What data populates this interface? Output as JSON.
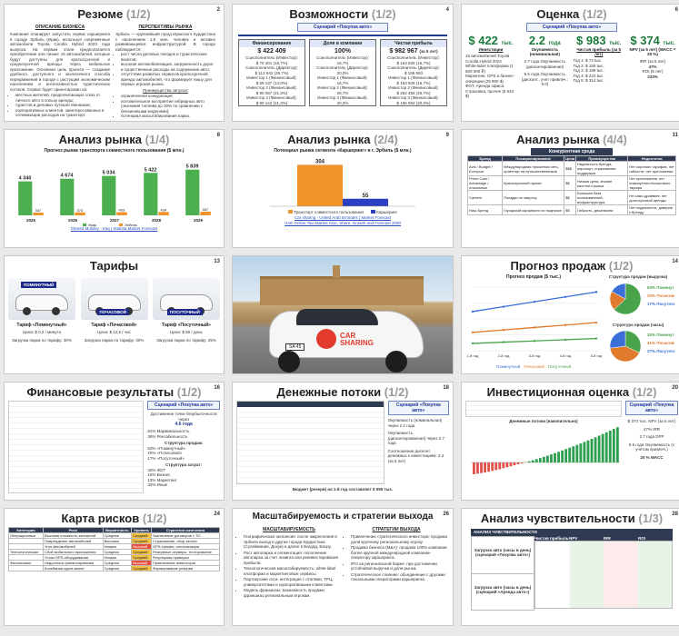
{
  "slides": {
    "s1": {
      "title": "Резюме",
      "sub": "(1/2)",
      "num": "2",
      "col1_title": "ОПИСАНИЕ БИЗНЕСА",
      "col2_title": "ПЕРСПЕКТИВЫ РЫНКА",
      "col1_text": "Компания планирует запустить сервис каршеринга в городе Эрбиль (Ирак), используя современные автомобили Toyota Corolla Hybrid 2023 года выпуска. На первом этапе предполагается приобретение или лизинг 15 автомобилей, которые будут доступны для краткосрочной и среднесрочной аренды через мобильное приложение. Основная цель проекта — создание удобного, доступного и экологичного способа передвижения в городе с растущим экономическим населением и интенсивностью туристических потоков. Сервис будет ориентирован на:",
      "col1_bullets": [
        "местных жителей, предпочитающих отказ от личного авто в пользу аренды;",
        "туристов и деловых путешественников;",
        "корпоративных клиентов, заинтересованных в оптимизации расходов на транспорт."
      ],
      "col2_text": "Эрбиль — крупнейший город Иракского Курдистана с населением 1,5 млн. человек и активно развивающейся инфраструктурой. В городе наблюдается:",
      "col2_bullets": [
        "рост числа деловых поездок и туристических визитов;",
        "высокая автомобилизация, загруженность дорог и существенные расходы на содержание авто;",
        "отсутствие развитых сервисов краткосрочной аренды автомобилей, что формирует нишу для первых игроков рынка."
      ],
      "col2_sub": "Преимущества запуска:",
      "col2_bullets2": [
        "ограниченная конкуренция;",
        "положительное восприятие гибридных авто (экономия топлива до 30% по сравнению с бензиновыми моделями);",
        "потенциал масштабирования парка."
      ]
    },
    "s2": {
      "title": "Возможности",
      "sub": "(1/2)",
      "num": "4",
      "scenario": "Сценарий «Покупка авто»",
      "headers": [
        "Финансирование",
        "Доля в компании",
        "Чистая прибыль"
      ],
      "values": [
        "$ 422 409",
        "100%",
        "$ 982 967"
      ],
      "value_notes": [
        "",
        "",
        "(за 5 лет)"
      ],
      "rows": [
        [
          "Соисполнитель (Инвестор):",
          "Соисполнитель (Инвестор):",
          "Соисполнитель (Инвестор):"
        ],
        [
          "$ 70 401 (16,7%)",
          "16,7%",
          "$ 163 828 (16,7%)"
        ],
        [
          "Соисполнитель (Директор):",
          "Соисполнитель (Директор):",
          "Соисполнитель (Директор):"
        ],
        [
          "$ 112 642 (26,7%)",
          "20,0%",
          "$ 196 593"
        ],
        [
          "Инвестор 1 (Финансовый):",
          "Инвестор 1 (Финансовый):",
          "Инвестор 1 (Финансовый):"
        ],
        [
          "$ 59 137 (14,0%)",
          "16,7%",
          "$ 163 828 (16,7%)"
        ],
        [
          "Инвестор 2 (Финансовый):",
          "Инвестор 2 (Финансовый):",
          "Инвестор 2 (Финансовый):"
        ],
        [
          "$ 90 087 (21,3%)",
          "26,7%",
          "$ 262 458 (26,7%)"
        ],
        [
          "Инвестор 3 (Финансовый):",
          "Инвестор 3 (Финансовый):",
          "Инвестор 3 (Финансовый):"
        ],
        [
          "$ 90 142 (21,3%)",
          "20,0%",
          "$ 196 593 (20,0%)"
        ]
      ]
    },
    "s3": {
      "title": "Оценка",
      "sub": "(1/2)",
      "num": "6",
      "scenario": "Сценарий «Покупка авто»",
      "kpis": [
        {
          "value": "$ 422",
          "unit": "тыс.",
          "label": "Инвестиции"
        },
        {
          "value": "2.2",
          "unit": "года",
          "label": "Окупаемость (номинальная)"
        },
        {
          "value": "$ 983",
          "unit": "тыс.",
          "label": "Чистая прибыль (за 5 лет)"
        },
        {
          "value": "$ 374",
          "unit": "тыс.",
          "label": "NPV (за 5 лет) (WACC = 20 %)"
        }
      ],
      "col1": [
        "15 автомобилей Toyota Corolla Hybrid 2023",
        "White-label платформа (1 500 000 ₽)",
        "Маркетинг, GPS и бизнес-операции (25 900 $)",
        "ФОТ, Аренда офиса, Страховка, прочее (6 634 $)"
      ],
      "col2": [
        "2.7 года Окупаемость (дисконтированная)",
        "5.6 года Окупаемость (дисконт., учет привлеч.: 9.0)"
      ],
      "col3": [
        "Год 1: $ 72 tыс.",
        "Год 2: $ 158 tыс.",
        "Год 3: $ 188 tыс.",
        "Год 4: $ 223 tыс.",
        "Год 5: $ 314 tыс."
      ],
      "col4": [
        "IRR (за 5 лет)",
        "47%",
        "ROI (5 лет)",
        "233%"
      ]
    },
    "s4": {
      "title": "Анализ рынка",
      "sub": "(1/4)",
      "num": "8",
      "chart_title": "Прогноз рынка транспорта совместного пользования ($ млн.)",
      "link": "Shared Mobility - Iraq | Statista Market Forecast"
    },
    "s5": {
      "title": "Анализ рынка",
      "sub": "(2/4)",
      "num": "9",
      "chart_title": "Потенциал рынка сегмента «Каршеринг» в г. Эрбиль ($ млн.)",
      "legend": [
        "Транспорт совместного пользования",
        "Каршеринг"
      ],
      "links": [
        "Car sharing - United Arab Emirates | Market Forecast",
        "UAE Online Taxi Market Size, Share, Growth and Forecast 2030"
      ]
    },
    "s6": {
      "title": "Анализ рынка",
      "sub": "(4/4)",
      "num": "11",
      "table_title": "Конкурентная среда",
      "headers": [
        "Бренд",
        "Позиционирование",
        "Цена",
        "Преимущества",
        "Недостатки"
      ],
      "rows": [
        [
          "Avis / Budget / Europcar",
          "Международная прокатная сеть, ориентир на путешественников",
          "$$$",
          "Надежность бренда, аэропорт, страхование, поддержка",
          "Нет коротких тарифов, нет гибкости, нет приложения"
        ],
        [
          "Prime Cars / Advantage / локальные",
          "Краткосрочный прокат",
          "$$",
          "Низкая цена, знание местного рынка",
          "Нет приложения, нет поминутного/почасового тарифа"
        ],
        [
          "Careem",
          "Поездки по запросу",
          "$$",
          "Большая база пользователей, инфраструктура",
          "Не само-драйвинг, нет долгосрочной аренды"
        ],
        [
          "Ниш Бренд",
          "Городской каршеринг по подписке",
          "$$",
          "Гибкость, дешевизна",
          "Нет надежности, доверия к бренду"
        ]
      ]
    },
    "s7": {
      "title": "Тарифы",
      "sub": "",
      "num": "13",
      "cars": [
        {
          "badge": "ПОМИНУТНЫЙ",
          "name": "Тариф «Поминутный»",
          "price": "Цена: $ 0,2 / минута",
          "note": "Загрузка парка по тарифу: 30%"
        },
        {
          "badge": "ПОЧАСОВОЙ",
          "name": "Тариф «Почасовой»",
          "price": "Цена: $ 12,5 / час",
          "note": "Загрузка парка по тарифу: 30%"
        },
        {
          "badge": "ПОСУТОЧНЫЙ",
          "name": "Тариф «Посуточный»",
          "price": "Цена: $ 50 / день",
          "note": "Загрузка парка по тарифу: 25%"
        }
      ]
    },
    "s8": {
      "brand": "CAR SHARING",
      "plate": "SA 45"
    },
    "s9": {
      "title": "Прогноз продаж",
      "sub": "(1/2)",
      "num": "14",
      "chart_title": "Прогноз продаж ($ тыс.)",
      "pie1_title": "Структура продаж (выручка)",
      "pie2_title": "Структура продаж (часы)",
      "legend": [
        "Поминутный",
        "Почасовой",
        "Посуточный"
      ]
    },
    "s10": {
      "title": "Финансовые результаты",
      "sub": "(1/2)",
      "num": "16",
      "scenario": "Сценарий «Покупка авто»",
      "kpis": [
        "Достижение точки безубыточности через",
        "4.6 года",
        "81% Маржинальность",
        "36% Рентабельность"
      ],
      "struct_title": "Структура продаж:",
      "struct": [
        "63% «Поминутный»",
        "20% «Почасовой»",
        "17% «Посуточный»"
      ],
      "cost_title": "Структура затрат:",
      "cost": [
        "40% ФОТ",
        "15% Бизнес",
        "13% Маркетинг",
        "32% Иные"
      ]
    },
    "s11": {
      "title": "Денежные потоки",
      "sub": "(1/2)",
      "num": "18",
      "scenario": "Сценарий «Покупка авто»",
      "right": [
        "Окупаемость (номинальная) через 2.2 года",
        "Окупаемость (дисконтированная) через 2.7 года",
        "Соотношение дисконт. денежных к инвестициям: 2.3 (за 5 лет)"
      ],
      "budget": "Бюджет (резерв) на 1-й год составляет $ 595 тыс."
    },
    "s12": {
      "title": "Инвестиционная оценка",
      "sub": "(1/2)",
      "num": "20",
      "scenario": "Сценарий «Покупка авто»",
      "chart_title": "Денежные потоки (накопительно)",
      "kpis": [
        "$ 374 тыс. NPV (за 5 лет)",
        "47% IRR",
        "2.7 года DPP",
        "5.6 года Окупаемость (с учетом привлеч.)",
        "20 % WACC"
      ]
    },
    "s13": {
      "title": "Карта рисков",
      "sub": "(1/2)",
      "num": "24",
      "headers": [
        "Категория",
        "Риск",
        "Вероятность",
        "Уровень",
        "Стратегия смягчения"
      ],
      "rows": [
        [
          "Операционные",
          "Высокая стоимость запчастей",
          "Средняя",
          "Средний",
          "Заключение договоров с ТО"
        ],
        [
          "",
          "Повреждение автомобилей",
          "Высокая",
          "Средний",
          "Страхование, сбор залога"
        ],
        [
          "",
          "Угон автомобилей",
          "Низкая",
          "Высокий",
          "GPS-трекинг, сигнализация"
        ],
        [
          "Технологические",
          "Сбой мобильного приложения",
          "Средняя",
          "Средний",
          "Резервные серверы, тестирование"
        ],
        [
          "",
          "Отказ GPS-оборудования",
          "Низкая",
          "Средний",
          "Регулярная проверка"
        ],
        [
          "Финансовые",
          "Недостаток финансирования",
          "Средняя",
          "Высокий",
          "Привлечение инвесторов"
        ],
        [
          "",
          "Колебания курса валют",
          "Средняя",
          "Средний",
          "Формирование резерва"
        ]
      ]
    },
    "s14": {
      "title": "Масштабируемость и стратегии выхода",
      "sub": "",
      "num": "26",
      "col1_title": "МАСШТАБИРУЕМОСТЬ",
      "col2_title": "СТРАТЕГИИ ВЫХОДА",
      "col1": [
        "Географическая экспансия: после закрепления в Эрбиле выход в другие города Курдистана (Сулеймания, Дохук) и далее в Багдад, Басру.",
        "Рост автопарка и сегментация: пополнение автопарка за счет лизинга или реинвестирования прибыли.",
        "Технологическая масштабируемость: white-label платформа и маркетинговые сервисы.",
        "Партнерские сети: интеграция с отелями, ТРЦ, университетами и корпоративными клиентами.",
        "Модель франшизы: возможность продажи франшизы региональным игрокам."
      ],
      "col2": [
        "Привлечение стратегического инвестора: продажа доли крупному региональному игроку.",
        "Продажа бизнеса (M&A): продажа 100% компании более крупной международной компании-оператору каршеринга.",
        "IPO на региональной бирже: при достижении устойчивой выручки и доли рынка.",
        "Стратегическое слияние: объединение с другими локальными операторами каршеринга."
      ]
    },
    "s15": {
      "title": "Анализ чувствительности",
      "sub": "(1/3)",
      "num": "28",
      "header": "АНАЛИЗ ЧУВСТВИТЕЛЬНОСТИ",
      "row_labels": [
        "Загрузка авто (часы в день) (сценарий «Покупка авто»)",
        "Загрузка авто (часы в день) (сценарий «Аренда авто»)"
      ],
      "cols": [
        "",
        "Чистая прибыль",
        "NPV",
        "IRR",
        "ROI"
      ]
    }
  },
  "chart_data": [
    {
      "type": "bar",
      "title": "Прогноз рынка транспорта совместного пользования ($ млн.)",
      "categories": [
        "2025",
        "2026",
        "2027",
        "2028",
        "2029"
      ],
      "series": [
        {
          "name": "Ирак",
          "values": [
            4340,
            4674,
            5034,
            5422,
            5839
          ]
        },
        {
          "name": "Эрбиль",
          "values": [
            347,
            374,
            403,
            434,
            467
          ]
        }
      ]
    },
    {
      "type": "bar",
      "title": "Потенциал рынка сегмента «Каршеринг» в г. Эрбиль ($ млн.)",
      "categories": [
        "Транспорт совместного пользования",
        "Каршеринг"
      ],
      "values": [
        304,
        55
      ]
    },
    {
      "type": "line",
      "title": "Прогноз продаж ($ тыс.)",
      "categories": [
        "1-й год",
        "2-й год",
        "3-й год",
        "4-й год",
        "5-й год"
      ],
      "series": [
        {
          "name": "Поминутный",
          "values": [
            320,
            360,
            400,
            440,
            480
          ]
        },
        {
          "name": "Почасовой",
          "values": [
            150,
            170,
            190,
            210,
            230
          ]
        },
        {
          "name": "Посуточный",
          "values": [
            60,
            70,
            80,
            90,
            100
          ]
        }
      ]
    },
    {
      "type": "pie",
      "title": "Структура продаж (выручка)",
      "categories": [
        "Поминутный",
        "Почасовой",
        "Посуточный"
      ],
      "values": [
        63,
        20,
        17
      ]
    },
    {
      "type": "pie",
      "title": "Структура продаж (часы)",
      "categories": [
        "Поминутный",
        "Почасовой",
        "Посуточный"
      ],
      "values": [
        32,
        41,
        27
      ]
    },
    {
      "type": "bar",
      "title": "Денежные потоки (накопительно)",
      "values": [
        -422,
        -400,
        -380,
        -355,
        -330,
        -300,
        -270,
        -240,
        -205,
        -170,
        -135,
        -100,
        -65,
        -30,
        5,
        40,
        80,
        120,
        160,
        200,
        245,
        290,
        335,
        380,
        430,
        480,
        530,
        580,
        630,
        680,
        735,
        790,
        845,
        900,
        960,
        1020,
        1080,
        1140,
        1200,
        1260
      ]
    }
  ]
}
